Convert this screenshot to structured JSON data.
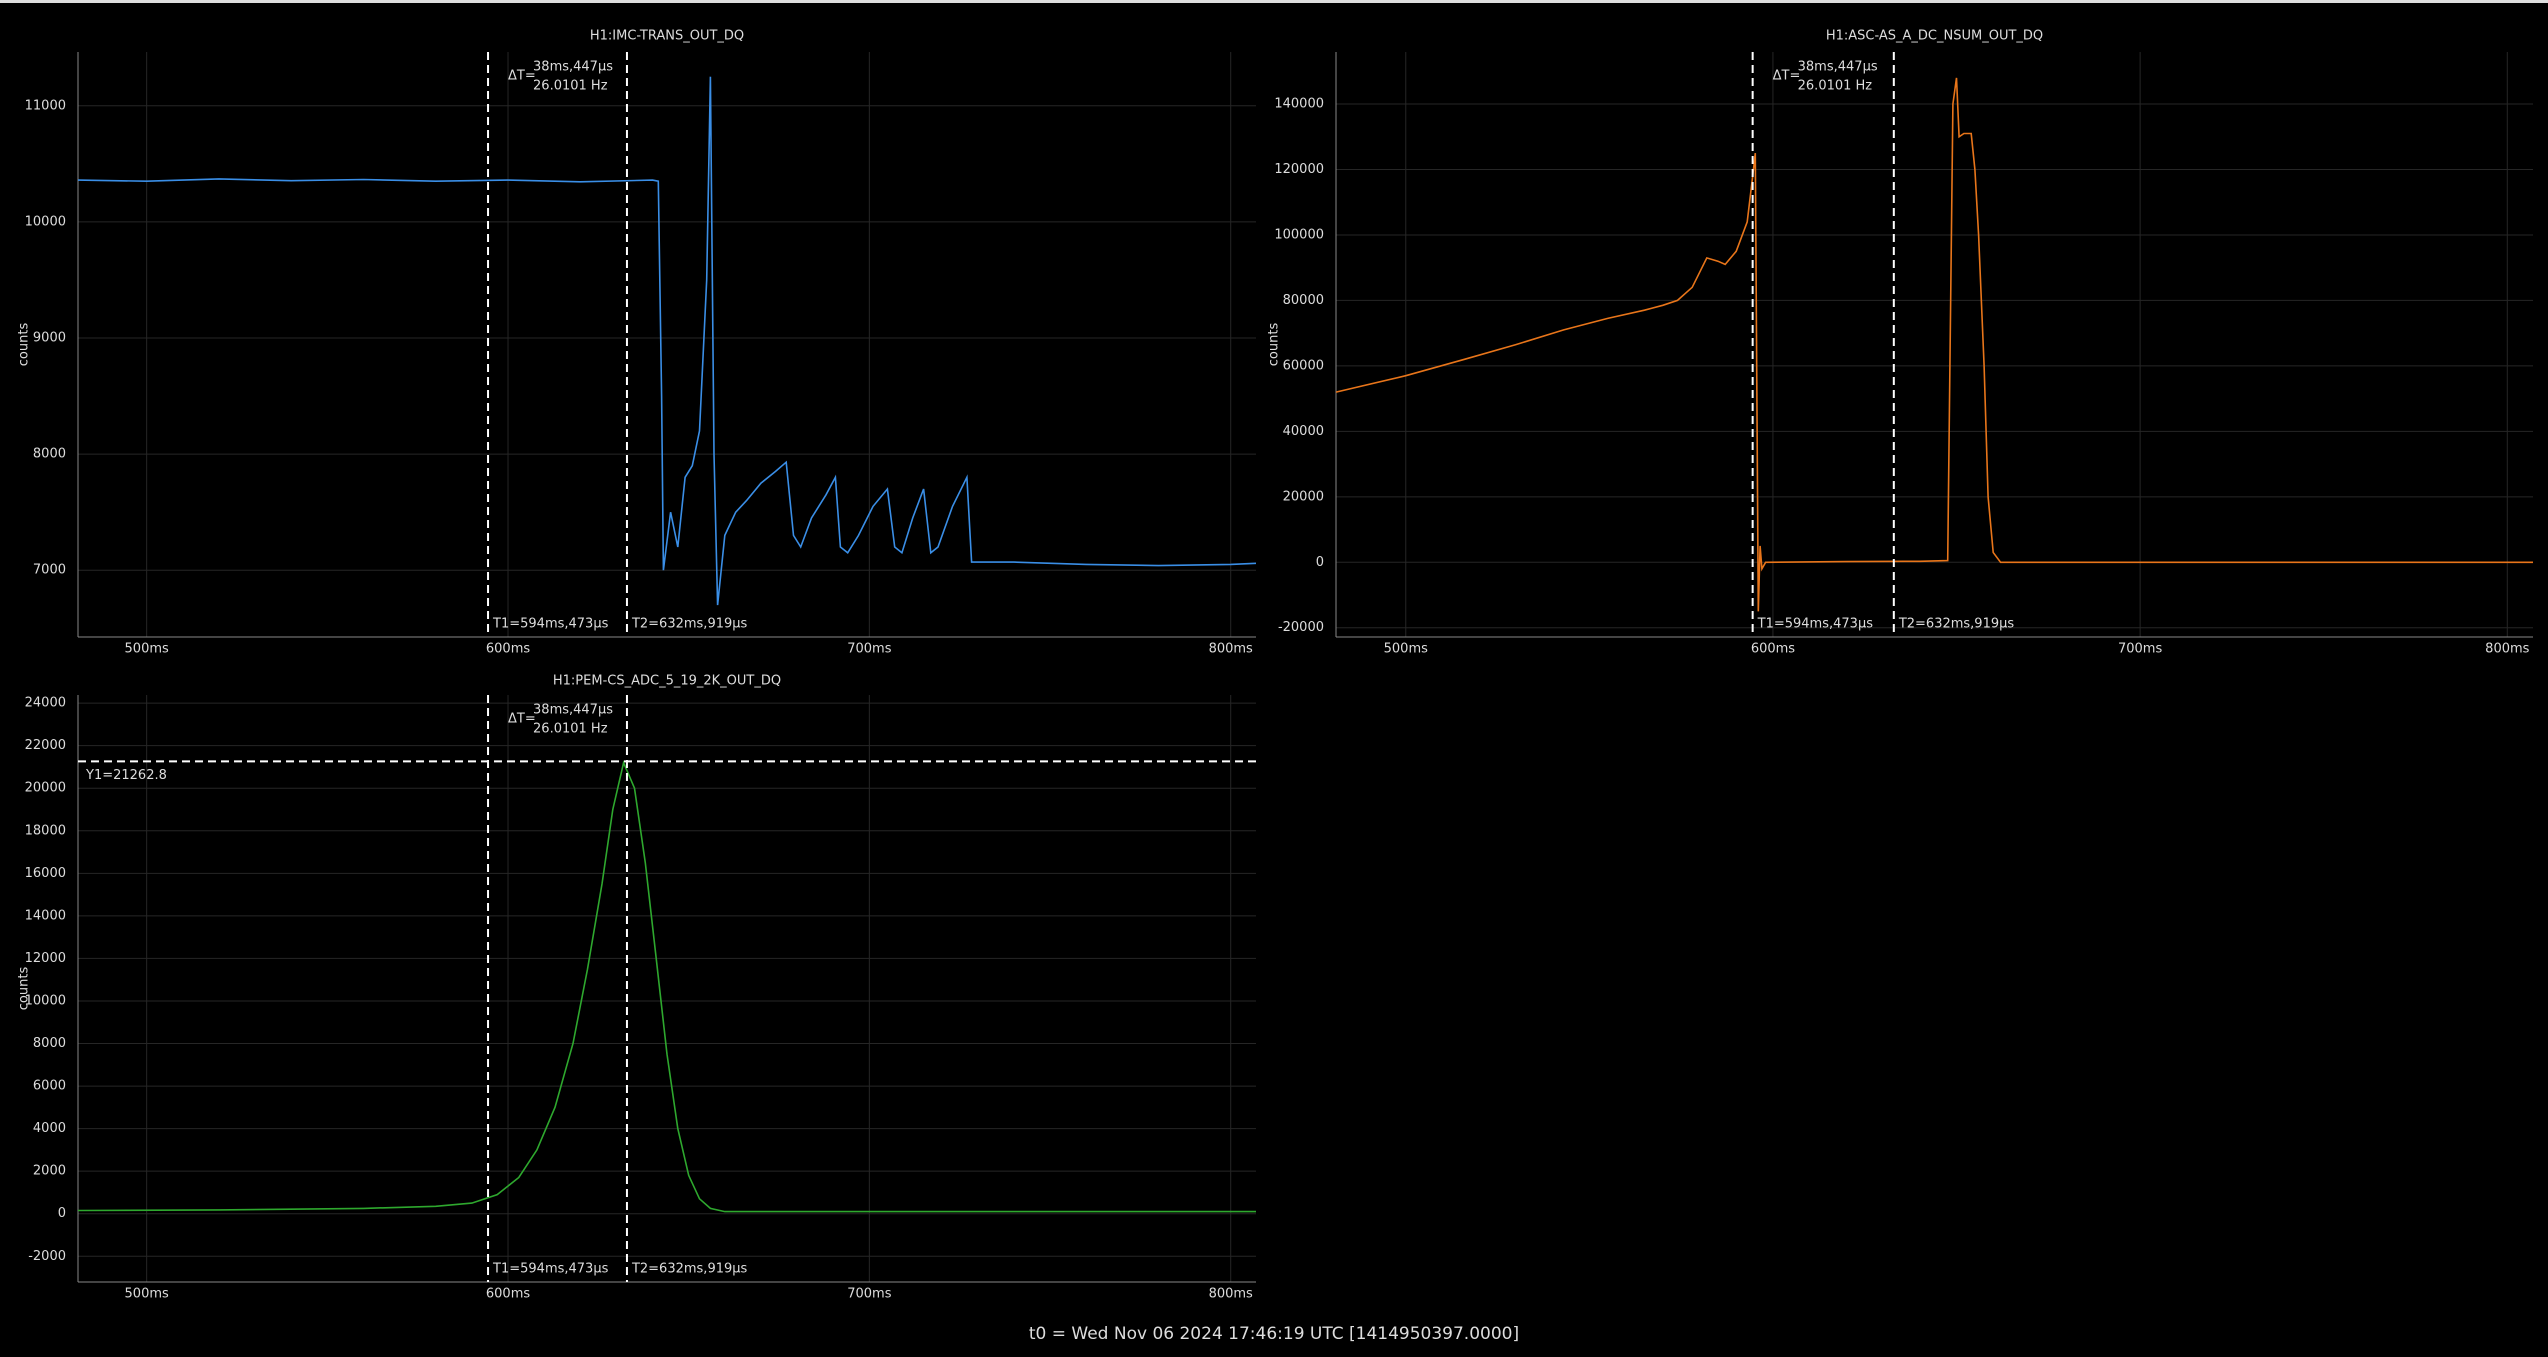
{
  "chart_data": [
    {
      "type": "line",
      "title": "H1:IMC-TRANS_OUT_DQ",
      "ylabel": "counts",
      "color": "#3a8ee6",
      "x": [
        481,
        500,
        520,
        540,
        560,
        580,
        600,
        620,
        640,
        641.6,
        642.5,
        643,
        645,
        647,
        649,
        651,
        653,
        655,
        656,
        657,
        658,
        660,
        663,
        666,
        670,
        674,
        677,
        679,
        681,
        684,
        688,
        690.6,
        692,
        694,
        697,
        701,
        705,
        707,
        709,
        712,
        715,
        717,
        719,
        723,
        727,
        728.3,
        740,
        760,
        780,
        800,
        807
      ],
      "values": [
        10360,
        10350,
        10370,
        10355,
        10365,
        10350,
        10360,
        10345,
        10360,
        10350,
        8500,
        7000,
        7500,
        7200,
        7800,
        7900,
        8200,
        9500,
        11250,
        8000,
        6700,
        7300,
        7500,
        7600,
        7750,
        7850,
        7930,
        7300,
        7200,
        7450,
        7650,
        7800,
        7200,
        7150,
        7300,
        7550,
        7700,
        7200,
        7150,
        7450,
        7700,
        7150,
        7200,
        7550,
        7800,
        7070,
        7070,
        7050,
        7040,
        7050,
        7060
      ],
      "xlim": [
        481,
        807
      ],
      "ylim": [
        6425,
        11463
      ],
      "xticks": [
        {
          "value": 500,
          "label": "500ms"
        },
        {
          "value": 600,
          "label": "600ms"
        },
        {
          "value": 700,
          "label": "700ms"
        },
        {
          "value": 800,
          "label": "800ms"
        }
      ],
      "yticks": [
        7000,
        8000,
        9000,
        10000,
        11000
      ],
      "cursors": [
        {
          "x": 594.473,
          "label": "T1=594ms,473µs"
        },
        {
          "x": 632.919,
          "label": "T2=632ms,919µs"
        }
      ],
      "delta": {
        "label": "ΔT=",
        "time": "38ms,447µs",
        "freq": "26.0101 Hz"
      }
    },
    {
      "type": "line",
      "title": "H1:ASC-AS_A_DC_NSUM_OUT_DQ",
      "ylabel": "counts",
      "color": "#e8751a",
      "x": [
        481,
        500,
        516,
        530,
        543,
        555,
        565,
        570,
        574,
        578,
        582,
        585,
        587,
        590,
        593,
        594.5,
        595.2,
        596,
        596.5,
        597,
        598,
        620,
        640,
        647.6,
        649,
        650,
        650.7,
        652,
        654,
        655,
        656,
        657.5,
        658.6,
        660,
        662,
        680,
        720,
        760,
        807
      ],
      "values": [
        52000,
        57000,
        62000,
        66500,
        71000,
        74500,
        77000,
        78500,
        80000,
        84000,
        93000,
        92000,
        91000,
        95000,
        104000,
        118000,
        125000,
        -15000,
        5000,
        -2000,
        0,
        200,
        300,
        500,
        140000,
        148000,
        130000,
        131000,
        131000,
        120000,
        100000,
        60000,
        20000,
        3000,
        0,
        0,
        0,
        0,
        0
      ],
      "xlim": [
        481,
        807
      ],
      "ylim": [
        -22830,
        155900
      ],
      "xticks": [
        {
          "value": 500,
          "label": "500ms"
        },
        {
          "value": 600,
          "label": "600ms"
        },
        {
          "value": 700,
          "label": "700ms"
        },
        {
          "value": 800,
          "label": "800ms"
        }
      ],
      "yticks": [
        -20000,
        0,
        20000,
        40000,
        60000,
        80000,
        100000,
        120000,
        140000
      ],
      "cursors": [
        {
          "x": 594.473,
          "label": "T1=594ms,473µs"
        },
        {
          "x": 632.919,
          "label": "T2=632ms,919µs"
        }
      ],
      "delta": {
        "label": "ΔT=",
        "time": "38ms,447µs",
        "freq": "26.0101 Hz"
      }
    },
    {
      "type": "line",
      "title": "H1:PEM-CS_ADC_5_19_2K_OUT_DQ",
      "ylabel": "counts",
      "color": "#2ea82e",
      "x": [
        481,
        520,
        560,
        580,
        590,
        597,
        603,
        608,
        613,
        618,
        622,
        626,
        629,
        632,
        635,
        638,
        641,
        644,
        647,
        650,
        653,
        656,
        660,
        680,
        720,
        760,
        807
      ],
      "values": [
        150,
        180,
        250,
        350,
        500,
        900,
        1700,
        3000,
        5000,
        8000,
        11500,
        15500,
        19000,
        21200,
        20000,
        16500,
        12000,
        7500,
        4000,
        1800,
        700,
        250,
        100,
        100,
        100,
        100,
        100
      ],
      "xlim": [
        481,
        807
      ],
      "ylim": [
        -3210,
        24382
      ],
      "xticks": [
        {
          "value": 500,
          "label": "500ms"
        },
        {
          "value": 600,
          "label": "600ms"
        },
        {
          "value": 700,
          "label": "700ms"
        },
        {
          "value": 800,
          "label": "800ms"
        }
      ],
      "yticks": [
        -2000,
        0,
        2000,
        4000,
        6000,
        8000,
        10000,
        12000,
        14000,
        16000,
        18000,
        20000,
        22000,
        24000
      ],
      "cursors": [
        {
          "x": 594.473,
          "label": "T1=594ms,473µs"
        },
        {
          "x": 632.919,
          "label": "T2=632ms,919µs"
        }
      ],
      "hcursor": {
        "y": 21262.8,
        "label": "Y1=21262.8"
      },
      "delta": {
        "label": "ΔT=",
        "time": "38ms,447µs",
        "freq": "26.0101 Hz"
      }
    }
  ],
  "footer": "t0 = Wed Nov 06 2024 17:46:19 UTC [1414950397.0000]"
}
